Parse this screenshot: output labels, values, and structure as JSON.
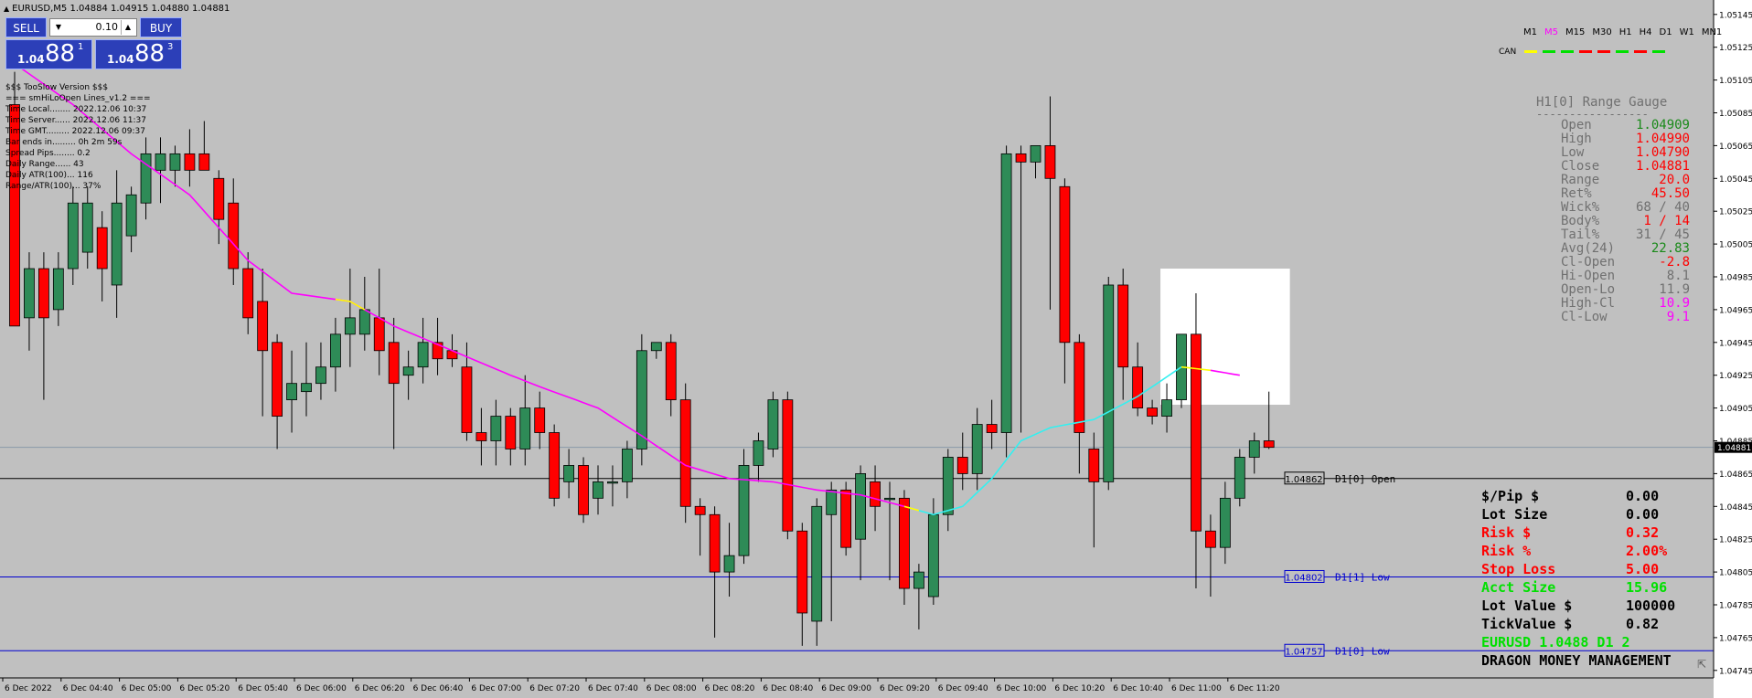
{
  "header": {
    "symbol_line": "EURUSD,M5  1.04884 1.04915 1.04880 1.04881"
  },
  "trade_panel": {
    "sell_label": "SELL",
    "buy_label": "BUY",
    "lot_value": "0.10",
    "bid": {
      "prefix": "1.04",
      "big": "88",
      "sup": "1"
    },
    "ask": {
      "prefix": "1.04",
      "big": "88",
      "sup": "3"
    }
  },
  "info_lines": [
    "$$$ TooSlow Version $$$",
    "=== smHiLoOpen Lines_v1.2 ===",
    "Time Local........ 2022.12.06 10:37",
    "Time Server...... 2022.12.06 11:37",
    "Time GMT......... 2022.12.06 09:37",
    "Bar ends in......... 0h 2m 59s",
    "Spread Pips........ 0.2",
    "Daily Range...... 43",
    "Daily ATR(100)... 116",
    "Range/ATR(100)... 37%"
  ],
  "timeframes": [
    "M1",
    "M5",
    "M15",
    "M30",
    "H1",
    "H4",
    "D1",
    "W1",
    "MN1"
  ],
  "active_timeframe": "M5",
  "can": {
    "label": "CAN",
    "colors": [
      "#ffff00",
      "#00e000",
      "#00e000",
      "#ff0000",
      "#ff0000",
      "#00e000",
      "#ff0000",
      "#00e000"
    ]
  },
  "gauge": {
    "title": "H1[0] Range Gauge",
    "separator": "-----------------",
    "rows": [
      {
        "label": "Open",
        "value": "1.04909",
        "color": "#1a8a1a"
      },
      {
        "label": "High",
        "value": "1.04990",
        "color": "#ff0000"
      },
      {
        "label": "Low",
        "value": "1.04790",
        "color": "#ff0000"
      },
      {
        "label": "Close",
        "value": "1.04881",
        "color": "#ff0000"
      },
      {
        "label": "Range",
        "value": "20.0",
        "color": "#ff0000"
      },
      {
        "label": "Ret%",
        "value": "45.50",
        "color": "#ff0000"
      },
      {
        "label": "Wick%",
        "value": "68 / 40",
        "color": "#707070"
      },
      {
        "label": "Body%",
        "value": "1 / 14",
        "color": "#ff0000"
      },
      {
        "label": "Tail%",
        "value": "31 / 45",
        "color": "#707070"
      },
      {
        "label": "Avg(24)",
        "value": "22.83",
        "color": "#1a8a1a"
      },
      {
        "label": "Cl-Open",
        "value": "-2.8",
        "color": "#ff0000"
      },
      {
        "label": "Hi-Open",
        "value": "8.1",
        "color": "#707070"
      },
      {
        "label": "Open-Lo",
        "value": "11.9",
        "color": "#707070"
      },
      {
        "label": "High-Cl",
        "value": "10.9",
        "color": "#ff00ff"
      },
      {
        "label": "Cl-Low",
        "value": "9.1",
        "color": "#ff00ff"
      }
    ]
  },
  "money": {
    "rows": [
      {
        "label": "$/Pip $",
        "value": "0.00",
        "color": "#000000"
      },
      {
        "label": "Lot Size",
        "value": "0.00",
        "color": "#000000"
      },
      {
        "label": "Risk $",
        "value": "0.32",
        "color": "#ff0000"
      },
      {
        "label": "Risk %",
        "value": "2.00%",
        "color": "#ff0000"
      },
      {
        "label": "Stop Loss",
        "value": "5.00",
        "color": "#ff0000"
      },
      {
        "label": "Acct Size",
        "value": "15.96",
        "color": "#00e000"
      },
      {
        "label": "Lot Value $",
        "value": "100000",
        "color": "#000000"
      },
      {
        "label": "TickValue $",
        "value": "0.82",
        "color": "#000000"
      }
    ],
    "summary": "EURUSD 1.0488 D1 2",
    "summary_color": "#00e000",
    "footer": "DRAGON MONEY MANAGEMENT"
  },
  "chart_data": {
    "type": "candlestick",
    "symbol": "EURUSD",
    "timeframe": "M5",
    "ylim": [
      1.0474,
      1.05155
    ],
    "y_ticks": [
      "1.05145",
      "1.05125",
      "1.05105",
      "1.05085",
      "1.05065",
      "1.05045",
      "1.05025",
      "1.05005",
      "1.04985",
      "1.04965",
      "1.04945",
      "1.04925",
      "1.04905",
      "1.04885",
      "1.04865",
      "1.04845",
      "1.04825",
      "1.04805",
      "1.04785",
      "1.04765",
      "1.04745"
    ],
    "x_ticks": [
      {
        "index": 0,
        "label": "6 Dec 2022"
      },
      {
        "index": 4,
        "label": "6 Dec 04:40"
      },
      {
        "index": 8,
        "label": "6 Dec 05:00"
      },
      {
        "index": 12,
        "label": "6 Dec 05:20"
      },
      {
        "index": 16,
        "label": "6 Dec 05:40"
      },
      {
        "index": 20,
        "label": "6 Dec 06:00"
      },
      {
        "index": 24,
        "label": "6 Dec 06:20"
      },
      {
        "index": 28,
        "label": "6 Dec 06:40"
      },
      {
        "index": 32,
        "label": "6 Dec 07:00"
      },
      {
        "index": 36,
        "label": "6 Dec 07:20"
      },
      {
        "index": 40,
        "label": "6 Dec 07:40"
      },
      {
        "index": 44,
        "label": "6 Dec 08:00"
      },
      {
        "index": 48,
        "label": "6 Dec 08:20"
      },
      {
        "index": 52,
        "label": "6 Dec 08:40"
      },
      {
        "index": 56,
        "label": "6 Dec 09:00"
      },
      {
        "index": 60,
        "label": "6 Dec 09:20"
      },
      {
        "index": 64,
        "label": "6 Dec 09:40"
      },
      {
        "index": 68,
        "label": "6 Dec 10:00"
      },
      {
        "index": 72,
        "label": "6 Dec 10:20"
      },
      {
        "index": 76,
        "label": "6 Dec 10:40"
      },
      {
        "index": 80,
        "label": "6 Dec 11:00"
      },
      {
        "index": 84,
        "label": "6 Dec 11:20"
      }
    ],
    "candles": [
      [
        1.0509,
        1.04955,
        1.0511,
        1.04955
      ],
      [
        1.0496,
        1.0499,
        1.05,
        1.0494
      ],
      [
        1.0499,
        1.0496,
        1.05,
        1.0491
      ],
      [
        1.04965,
        1.0499,
        1.05,
        1.04955
      ],
      [
        1.0499,
        1.0503,
        1.0504,
        1.0498
      ],
      [
        1.05,
        1.0503,
        1.0504,
        1.0499
      ],
      [
        1.05015,
        1.0499,
        1.05025,
        1.0497
      ],
      [
        1.0498,
        1.0503,
        1.0505,
        1.0496
      ],
      [
        1.0501,
        1.05035,
        1.0504,
        1.05
      ],
      [
        1.0503,
        1.0506,
        1.0507,
        1.0502
      ],
      [
        1.0505,
        1.0506,
        1.0507,
        1.0503
      ],
      [
        1.0505,
        1.0506,
        1.05065,
        1.0504
      ],
      [
        1.0506,
        1.0505,
        1.05075,
        1.0504
      ],
      [
        1.0506,
        1.0505,
        1.0508,
        1.0505
      ],
      [
        1.05045,
        1.0502,
        1.0505,
        1.05005
      ],
      [
        1.0503,
        1.0499,
        1.05045,
        1.0498
      ],
      [
        1.0499,
        1.0496,
        1.05,
        1.0495
      ],
      [
        1.0497,
        1.0494,
        1.0499,
        1.049
      ],
      [
        1.04945,
        1.049,
        1.0495,
        1.0488
      ],
      [
        1.0491,
        1.0492,
        1.0494,
        1.0489
      ],
      [
        1.04915,
        1.0492,
        1.04945,
        1.049
      ],
      [
        1.0492,
        1.0493,
        1.04945,
        1.0491
      ],
      [
        1.0493,
        1.0495,
        1.0496,
        1.04915
      ],
      [
        1.0495,
        1.0496,
        1.0499,
        1.0493
      ],
      [
        1.0495,
        1.04965,
        1.04985,
        1.0494
      ],
      [
        1.0496,
        1.0494,
        1.0499,
        1.04925
      ],
      [
        1.04945,
        1.0492,
        1.0496,
        1.0488
      ],
      [
        1.04925,
        1.0493,
        1.0494,
        1.0491
      ],
      [
        1.0493,
        1.04945,
        1.0496,
        1.0492
      ],
      [
        1.04945,
        1.04935,
        1.0496,
        1.04925
      ],
      [
        1.0494,
        1.04935,
        1.0495,
        1.0493
      ],
      [
        1.0493,
        1.0489,
        1.04945,
        1.04885
      ],
      [
        1.0489,
        1.04885,
        1.04905,
        1.0487
      ],
      [
        1.04885,
        1.049,
        1.0491,
        1.0487
      ],
      [
        1.049,
        1.0488,
        1.04905,
        1.0487
      ],
      [
        1.0488,
        1.04905,
        1.04925,
        1.0487
      ],
      [
        1.04905,
        1.0489,
        1.04915,
        1.0488
      ],
      [
        1.0489,
        1.0485,
        1.04895,
        1.04845
      ],
      [
        1.0486,
        1.0487,
        1.0488,
        1.0485
      ],
      [
        1.0487,
        1.0484,
        1.04875,
        1.04835
      ],
      [
        1.0485,
        1.0486,
        1.0487,
        1.0484
      ],
      [
        1.0486,
        1.0486,
        1.0487,
        1.04845
      ],
      [
        1.0486,
        1.0488,
        1.04885,
        1.0485
      ],
      [
        1.0488,
        1.0494,
        1.0495,
        1.0487
      ],
      [
        1.0494,
        1.04945,
        1.04945,
        1.04935
      ],
      [
        1.04945,
        1.0491,
        1.0495,
        1.049
      ],
      [
        1.0491,
        1.04845,
        1.0492,
        1.04835
      ],
      [
        1.04845,
        1.0484,
        1.0485,
        1.04815
      ],
      [
        1.0484,
        1.04805,
        1.04845,
        1.04765
      ],
      [
        1.04805,
        1.04815,
        1.04835,
        1.0479
      ],
      [
        1.04815,
        1.0487,
        1.0488,
        1.0481
      ],
      [
        1.0487,
        1.04885,
        1.0489,
        1.0486
      ],
      [
        1.0488,
        1.0491,
        1.04915,
        1.04875
      ],
      [
        1.0491,
        1.0483,
        1.04915,
        1.04825
      ],
      [
        1.0483,
        1.0478,
        1.04835,
        1.0476
      ],
      [
        1.04775,
        1.04845,
        1.0485,
        1.0476
      ],
      [
        1.0484,
        1.04855,
        1.0486,
        1.04775
      ],
      [
        1.04855,
        1.0482,
        1.0486,
        1.04815
      ],
      [
        1.04825,
        1.04865,
        1.0487,
        1.048
      ],
      [
        1.0486,
        1.04845,
        1.0487,
        1.0483
      ],
      [
        1.0485,
        1.0485,
        1.0486,
        1.048
      ],
      [
        1.0485,
        1.04795,
        1.04855,
        1.04785
      ],
      [
        1.04795,
        1.04805,
        1.0481,
        1.0477
      ],
      [
        1.0479,
        1.0484,
        1.0485,
        1.04785
      ],
      [
        1.0484,
        1.04875,
        1.0488,
        1.0483
      ],
      [
        1.04875,
        1.04865,
        1.0489,
        1.04855
      ],
      [
        1.04865,
        1.04895,
        1.04905,
        1.04855
      ],
      [
        1.04895,
        1.0489,
        1.0491,
        1.0488
      ],
      [
        1.0489,
        1.0506,
        1.05065,
        1.04875
      ],
      [
        1.0506,
        1.05055,
        1.05065,
        1.0489
      ],
      [
        1.05055,
        1.05065,
        1.05065,
        1.05045
      ],
      [
        1.05065,
        1.05045,
        1.05095,
        1.04965
      ],
      [
        1.0504,
        1.04945,
        1.05045,
        1.0492
      ],
      [
        1.04945,
        1.0489,
        1.0495,
        1.04865
      ],
      [
        1.0488,
        1.0486,
        1.0489,
        1.0482
      ],
      [
        1.0486,
        1.0498,
        1.04985,
        1.04855
      ],
      [
        1.0498,
        1.0493,
        1.0499,
        1.0491
      ],
      [
        1.0493,
        1.04905,
        1.04945,
        1.049
      ],
      [
        1.04905,
        1.049,
        1.0491,
        1.04895
      ],
      [
        1.049,
        1.0491,
        1.0492,
        1.0489
      ],
      [
        1.0491,
        1.0495,
        1.0495,
        1.04905
      ],
      [
        1.0495,
        1.0483,
        1.04975,
        1.04795
      ],
      [
        1.0483,
        1.0482,
        1.0484,
        1.0479
      ],
      [
        1.0482,
        1.0485,
        1.0486,
        1.0481
      ],
      [
        1.0485,
        1.04875,
        1.0488,
        1.04845
      ],
      [
        1.04875,
        1.04885,
        1.0489,
        1.04865
      ],
      [
        1.04885,
        1.04881,
        1.04915,
        1.0488
      ]
    ],
    "ma_points": [
      [
        0,
        1.05115
      ],
      [
        4,
        1.0509
      ],
      [
        8,
        1.0506
      ],
      [
        12,
        1.05035
      ],
      [
        16,
        1.04995
      ],
      [
        19,
        1.04975
      ],
      [
        23,
        1.0497
      ],
      [
        26,
        1.04955
      ],
      [
        30,
        1.0494
      ],
      [
        34,
        1.04925
      ],
      [
        36,
        1.04918
      ],
      [
        40,
        1.04905
      ],
      [
        43,
        1.04888
      ],
      [
        46,
        1.0487
      ],
      [
        49,
        1.04862
      ],
      [
        52,
        1.0486
      ],
      [
        55,
        1.04855
      ],
      [
        58,
        1.04852
      ],
      [
        61,
        1.04845
      ],
      [
        63,
        1.0484
      ],
      [
        65,
        1.04845
      ],
      [
        67,
        1.04862
      ],
      [
        69,
        1.04885
      ],
      [
        71,
        1.04893
      ],
      [
        74,
        1.04898
      ],
      [
        77,
        1.04912
      ],
      [
        80,
        1.0493
      ],
      [
        82,
        1.04928
      ],
      [
        84,
        1.04925
      ]
    ],
    "ma_segments": [
      {
        "from": 0,
        "to": 61,
        "color": "#ff00ff"
      },
      {
        "from": 61,
        "to": 62,
        "color": "#ffff00"
      },
      {
        "from": 62,
        "to": 80,
        "color": "#33f0f0"
      },
      {
        "from": 80,
        "to": 82,
        "color": "#ffff00"
      },
      {
        "from": 82,
        "to": 84,
        "color": "#ff00ff"
      }
    ],
    "yellow_highlight": {
      "from": 22,
      "to": 24
    },
    "levels": [
      {
        "price": 1.04862,
        "label": "1.04862",
        "desc": "D1[0] Open",
        "color": "#000000"
      },
      {
        "price": 1.04802,
        "label": "1.04802",
        "desc": "D1[1] Low",
        "color": "#0000d0"
      },
      {
        "price": 1.04757,
        "label": "1.04757",
        "desc": "D1[0] Low",
        "color": "#0000d0"
      }
    ],
    "current_price": {
      "price": 1.04881,
      "label": "1.04881"
    },
    "h1_box": {
      "from": 79,
      "to": 87,
      "top": 1.0499,
      "bottom": 1.04907
    }
  }
}
